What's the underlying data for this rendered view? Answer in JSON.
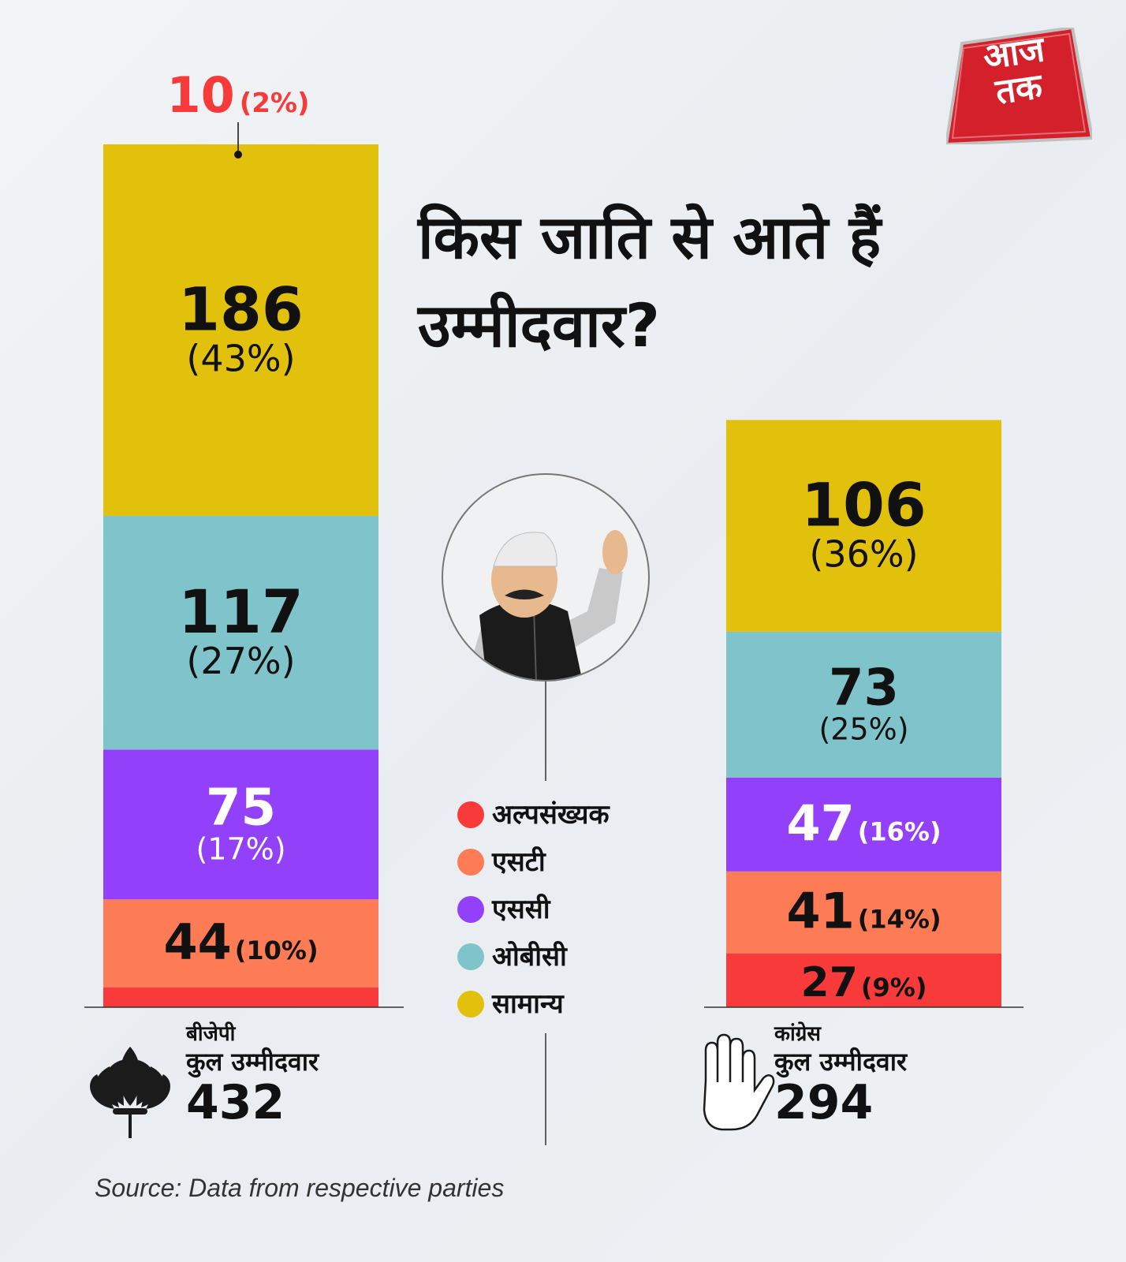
{
  "title": "किस जाति से आते हैं उम्मीदवार?",
  "logo_text_line1": "आज",
  "logo_text_line2": "तक",
  "source": "Source: Data from respective parties",
  "colors": {
    "अल्पसंख्यक": "#f93a3a",
    "एसटी": "#fd7b55",
    "एससी": "#9340fb",
    "ओबीसी": "#80c4cb",
    "सामान्य": "#e2c10c"
  },
  "legend": [
    {
      "label": "अल्पसंख्यक",
      "color": "#f93a3a"
    },
    {
      "label": "एसटी",
      "color": "#fd7b55"
    },
    {
      "label": "एससी",
      "color": "#9340fb"
    },
    {
      "label": "ओबीसी",
      "color": "#80c4cb"
    },
    {
      "label": "सामान्य",
      "color": "#e2c10c"
    }
  ],
  "parties": [
    {
      "name": "बीजेपी",
      "sub": "कुल उम्मीदवार",
      "total": "432",
      "icon": "lotus-icon"
    },
    {
      "name": "कांग्रेस",
      "sub": "कुल उम्मीदवार",
      "total": "294",
      "icon": "hand-icon"
    }
  ],
  "chart_data": {
    "type": "bar",
    "stacked": true,
    "categories": [
      "बीजेपी",
      "कांग्रेस"
    ],
    "series": [
      {
        "name": "अल्पसंख्यक",
        "values": [
          10,
          27
        ],
        "labels": [
          "10",
          "27"
        ],
        "percent": [
          "(2%)",
          "(9%)"
        ]
      },
      {
        "name": "एसटी",
        "values": [
          44,
          41
        ],
        "labels": [
          "44",
          "41"
        ],
        "percent": [
          "(10%)",
          "(14%)"
        ]
      },
      {
        "name": "एससी",
        "values": [
          75,
          47
        ],
        "labels": [
          "75",
          "47"
        ],
        "percent": [
          "(17%)",
          "(16%)"
        ]
      },
      {
        "name": "ओबीसी",
        "values": [
          117,
          73
        ],
        "labels": [
          "117",
          "73"
        ],
        "percent": [
          "(27%)",
          "(25%)"
        ]
      },
      {
        "name": "सामान्य",
        "values": [
          186,
          106
        ],
        "labels": [
          "186",
          "106"
        ],
        "percent": [
          "(43%)",
          "(36%)"
        ]
      }
    ],
    "totals": [
      432,
      294
    ],
    "legend_position": "center"
  }
}
